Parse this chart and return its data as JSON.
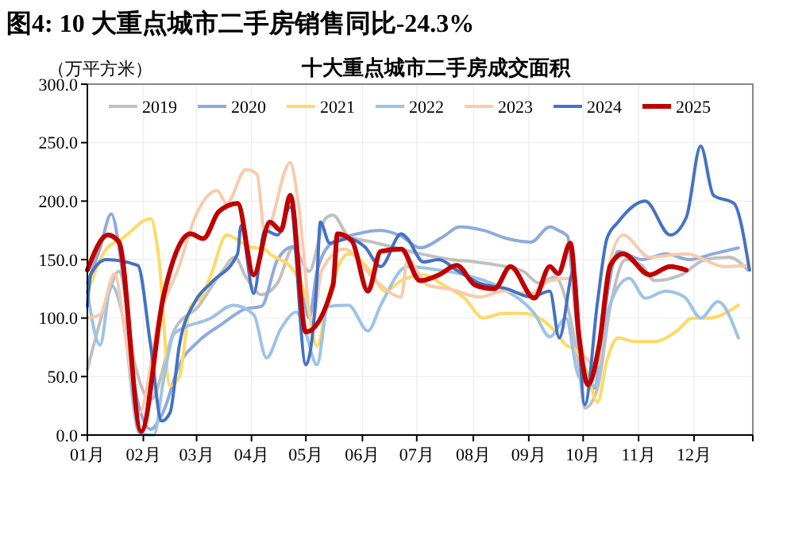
{
  "chart_data": {
    "type": "line",
    "title": "图4:  10 大重点城市二手房销售同比-24.3%",
    "subtitle": "十大重点城市二手房成交面积",
    "ylabel": "（万平方米）",
    "xlim": [
      1,
      13
    ],
    "xticks": [
      {
        "value": 1,
        "label": "01月"
      },
      {
        "value": 2.01,
        "label": "02月"
      },
      {
        "value": 2.97,
        "label": "03月"
      },
      {
        "value": 3.96,
        "label": "04月"
      },
      {
        "value": 4.94,
        "label": "05月"
      },
      {
        "value": 5.96,
        "label": "06月"
      },
      {
        "value": 6.94,
        "label": "07月"
      },
      {
        "value": 7.96,
        "label": "08月"
      },
      {
        "value": 8.96,
        "label": "09月"
      },
      {
        "value": 9.94,
        "label": "10月"
      },
      {
        "value": 10.94,
        "label": "11月"
      },
      {
        "value": 11.94,
        "label": "12月"
      }
    ],
    "ylim": [
      0,
      300
    ],
    "yticks": [
      {
        "value": 0,
        "label": "0.0"
      },
      {
        "value": 50,
        "label": "50.0"
      },
      {
        "value": 100,
        "label": "100.0"
      },
      {
        "value": 150,
        "label": "150.0"
      },
      {
        "value": 200,
        "label": "200.0"
      },
      {
        "value": 250,
        "label": "250.0"
      },
      {
        "value": 300,
        "label": "300.0"
      }
    ],
    "grid": true,
    "legend": "top",
    "line_style": "solid",
    "marker": "none",
    "series": [
      {
        "name": "2019",
        "color": "#c0c0c0",
        "x": [
          1.0,
          1.34,
          1.57,
          1.86,
          2.14,
          2.57,
          3.0,
          3.43,
          3.66,
          3.86,
          4.14,
          4.43,
          4.71,
          5.0,
          5.29,
          5.43,
          5.71,
          6.14,
          6.57,
          7.0,
          7.57,
          8.0,
          8.43,
          8.86,
          9.14,
          9.43,
          9.66,
          9.86,
          9.97,
          10.2,
          10.43,
          10.71,
          11.0,
          11.23,
          11.71,
          12.14,
          12.57,
          12.91
        ],
        "values": [
          56,
          114,
          140,
          60,
          30,
          90,
          110,
          140,
          152,
          135,
          120,
          130,
          160,
          140,
          185,
          188,
          170,
          165,
          160,
          155,
          150,
          148,
          145,
          140,
          130,
          135,
          110,
          60,
          23,
          40,
          110,
          150,
          145,
          132,
          137,
          150,
          152,
          141
        ]
      },
      {
        "name": "2020",
        "color": "#8faadc",
        "x": [
          1.0,
          1.23,
          1.43,
          1.63,
          1.86,
          2.14,
          2.37,
          2.66,
          3.0,
          3.43,
          3.86,
          4.14,
          4.43,
          4.71,
          4.86,
          5.0,
          5.14,
          5.43,
          5.86,
          6.29,
          6.66,
          7.0,
          7.43,
          7.71,
          8.14,
          8.57,
          9.0,
          9.34,
          9.49,
          9.66,
          9.77,
          9.94,
          10.14,
          10.34,
          10.57,
          11.0,
          11.43,
          11.86,
          12.29,
          12.74
        ],
        "values": [
          130,
          160,
          189,
          140,
          40,
          5,
          20,
          60,
          80,
          95,
          108,
          110,
          150,
          161,
          128,
          100,
          140,
          165,
          172,
          175,
          170,
          160,
          170,
          178,
          175,
          168,
          165,
          178,
          175,
          170,
          120,
          50,
          40,
          110,
          157,
          150,
          155,
          150,
          155,
          160
        ]
      },
      {
        "name": "2021",
        "color": "#ffd966",
        "x": [
          1.0,
          1.34,
          1.63,
          2.14,
          2.29,
          2.49,
          2.66,
          2.86,
          3.06,
          3.23,
          3.51,
          3.91,
          4.2,
          4.29,
          4.66,
          4.94,
          5.14,
          5.34,
          5.71,
          6.09,
          6.37,
          6.66,
          7.06,
          7.43,
          7.8,
          8.14,
          8.49,
          8.86,
          9.43,
          9.63,
          9.8,
          10.0,
          10.2,
          10.37,
          10.57,
          10.86,
          11.23,
          11.63,
          11.91,
          12.2,
          12.74
        ],
        "values": [
          121,
          159,
          168,
          185,
          151,
          42,
          50,
          110,
          118,
          137,
          171,
          161,
          159,
          155,
          144,
          118,
          76,
          118,
          155,
          141,
          123,
          132,
          137,
          128,
          117,
          100,
          104,
          104,
          89,
          77,
          73,
          55,
          28,
          64,
          83,
          80,
          80,
          89,
          100,
          100,
          111
        ]
      },
      {
        "name": "2022",
        "color": "#9dc3e6",
        "x": [
          1.0,
          1.23,
          1.43,
          1.63,
          1.94,
          2.2,
          2.37,
          2.57,
          3.23,
          3.63,
          4.0,
          4.23,
          4.49,
          4.77,
          4.94,
          5.14,
          5.34,
          5.71,
          6.06,
          6.29,
          6.77,
          7.34,
          7.8,
          8.49,
          9.06,
          9.34,
          9.63,
          9.86,
          10.17,
          10.37,
          10.77,
          11.06,
          11.43,
          11.77,
          12.06,
          12.37,
          12.74
        ],
        "values": [
          123,
          77,
          128,
          104,
          1,
          0,
          46,
          87,
          100,
          111,
          103,
          66,
          91,
          105,
          87,
          60,
          110,
          111,
          89,
          111,
          144,
          141,
          137,
          125,
          104,
          84,
          100,
          50,
          42,
          104,
          134,
          117,
          123,
          118,
          100,
          114,
          83
        ]
      },
      {
        "name": "2023",
        "color": "#f8cbad",
        "x": [
          1.0,
          1.23,
          1.49,
          1.71,
          1.94,
          2.29,
          2.66,
          2.94,
          3.34,
          3.51,
          3.86,
          4.06,
          4.2,
          4.66,
          4.8,
          5.06,
          5.23,
          5.63,
          6.2,
          6.66,
          6.77,
          7.14,
          7.51,
          8.09,
          8.49,
          9.0,
          9.34,
          9.71,
          9.94,
          10.2,
          10.37,
          10.66,
          11.14,
          11.8,
          12.49,
          12.91
        ],
        "values": [
          100,
          103,
          138,
          77,
          19,
          100,
          145,
          186,
          209,
          198,
          227,
          223,
          172,
          233,
          200,
          96,
          141,
          159,
          132,
          118,
          150,
          128,
          125,
          118,
          123,
          121,
          132,
          134,
          69,
          60,
          137,
          171,
          152,
          155,
          144,
          145
        ]
      },
      {
        "name": "2024",
        "color": "#4472c4",
        "x": [
          1.0,
          1.06,
          1.34,
          1.91,
          2.14,
          2.34,
          2.49,
          2.66,
          2.94,
          3.23,
          3.71,
          3.77,
          4.0,
          4.2,
          4.43,
          4.66,
          4.94,
          5.14,
          5.2,
          5.37,
          5.71,
          6.0,
          6.29,
          6.66,
          6.77,
          7.06,
          7.34,
          7.66,
          8.06,
          8.57,
          9.0,
          9.34,
          9.51,
          9.77,
          9.97,
          10.2,
          10.37,
          10.57,
          11.06,
          11.51,
          11.8,
          12.06,
          12.29,
          12.66,
          12.94
        ],
        "values": [
          110,
          137,
          150,
          145,
          77,
          12,
          19,
          77,
          114,
          130,
          155,
          179,
          121,
          175,
          171,
          195,
          60,
          132,
          182,
          164,
          168,
          161,
          144,
          172,
          168,
          148,
          150,
          141,
          130,
          125,
          118,
          123,
          83,
          141,
          26,
          114,
          168,
          182,
          200,
          171,
          186,
          247,
          205,
          198,
          141
        ]
      },
      {
        "name": "2025",
        "color": "#c00000",
        "x": [
          1.0,
          1.37,
          1.57,
          1.97,
          2.37,
          2.86,
          3.09,
          3.37,
          3.71,
          4.0,
          4.29,
          4.49,
          4.66,
          4.94,
          5.43,
          5.51,
          5.77,
          6.06,
          6.29,
          6.66,
          7.0,
          7.34,
          7.66,
          8.0,
          8.34,
          8.63,
          9.06,
          9.34,
          9.49,
          9.71,
          9.86,
          10.03,
          10.23,
          10.43,
          10.66,
          11.14,
          11.51,
          11.8
        ],
        "values": [
          141,
          171,
          165,
          3,
          118,
          172,
          168,
          191,
          198,
          137,
          182,
          175,
          205,
          88,
          128,
          172,
          166,
          123,
          157,
          159,
          132,
          137,
          145,
          128,
          125,
          144,
          117,
          144,
          138,
          164,
          87,
          43,
          77,
          145,
          155,
          137,
          144,
          141
        ]
      }
    ]
  }
}
